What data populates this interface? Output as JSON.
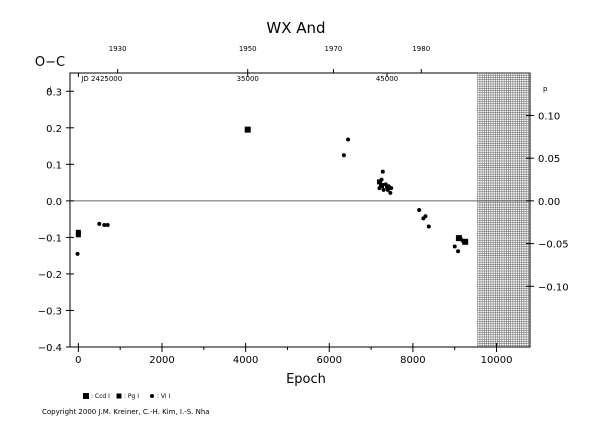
{
  "chart_data": {
    "type": "scatter",
    "title": "WX And",
    "ylabel": "O−C",
    "ylabel_exponent": "d",
    "right_ylabel_exponent": "p",
    "xlabel": "Epoch",
    "xlim": [
      -200,
      10800
    ],
    "ylim": [
      -0.4,
      0.35
    ],
    "x_ticks": [
      0,
      2000,
      4000,
      6000,
      8000,
      10000
    ],
    "y_ticks": [
      -0.4,
      -0.3,
      -0.2,
      -0.1,
      0.0,
      0.1,
      0.2,
      0.3
    ],
    "y_tick_labels": [
      "−0.4",
      "−0.3",
      "−0.2",
      "−0.1",
      "0.0",
      "0.1",
      "0.2",
      "0.3"
    ],
    "right_y_ticks": [
      -0.1,
      -0.05,
      0.0,
      0.05,
      0.1
    ],
    "right_y_tick_labels": [
      "−0.10",
      "−0.05",
      "0.00",
      "0.05",
      "0.10"
    ],
    "right_y_per_left_unit": 0.4277,
    "top_year_ticks": [
      {
        "label": "1930",
        "epoch": 940
      },
      {
        "label": "1950",
        "epoch": 4050
      },
      {
        "label": "1970",
        "epoch": 6100
      },
      {
        "label": "1980",
        "epoch": 8200
      }
    ],
    "top_jd_ticks": [
      {
        "label": "JD 2425000",
        "epoch": 0
      },
      {
        "label": "35000",
        "epoch": 4050
      },
      {
        "label": "45000",
        "epoch": 7380
      }
    ],
    "future_region_start": 9550,
    "zero_line": 0.0,
    "series": [
      {
        "name": ": Ccd I",
        "marker": "square-filled",
        "points": [
          [
            4050,
            0.195
          ],
          [
            9100,
            -0.102
          ],
          [
            9250,
            -0.112
          ]
        ]
      },
      {
        "name": ": Pg I",
        "marker": "square-small",
        "points": [
          [
            0,
            -0.086
          ],
          [
            0,
            -0.093
          ],
          [
            7200,
            0.052
          ],
          [
            7250,
            0.042
          ]
        ]
      },
      {
        "name": ": Vi I",
        "marker": "dot",
        "points": [
          [
            -20,
            -0.145
          ],
          [
            500,
            -0.063
          ],
          [
            620,
            -0.066
          ],
          [
            700,
            -0.066
          ],
          [
            6350,
            0.125
          ],
          [
            6450,
            0.168
          ],
          [
            7200,
            0.035
          ],
          [
            7250,
            0.058
          ],
          [
            7280,
            0.08
          ],
          [
            7300,
            0.03
          ],
          [
            7350,
            0.045
          ],
          [
            7380,
            0.038
          ],
          [
            7400,
            0.03
          ],
          [
            7420,
            0.04
          ],
          [
            7440,
            0.035
          ],
          [
            7460,
            0.022
          ],
          [
            7480,
            0.035
          ],
          [
            8150,
            -0.025
          ],
          [
            8250,
            -0.048
          ],
          [
            8300,
            -0.042
          ],
          [
            8380,
            -0.07
          ],
          [
            9000,
            -0.125
          ],
          [
            9080,
            -0.138
          ],
          [
            9150,
            -0.105
          ],
          [
            9200,
            -0.11
          ]
        ]
      }
    ]
  },
  "copyright": "Copyright 2000 J.M. Kreiner, C.-H. Kim, I.-S. Nha"
}
